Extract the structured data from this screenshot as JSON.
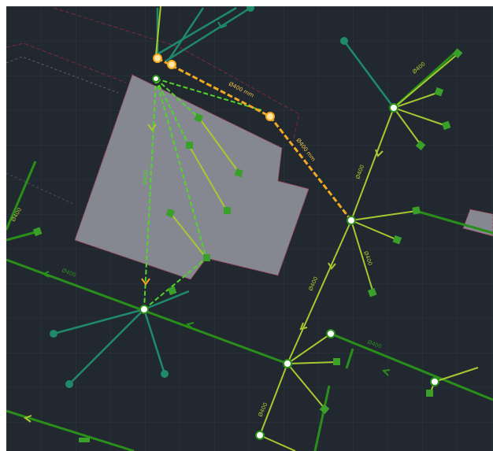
{
  "canvas": {
    "background": "#212830",
    "grid_color": "#2c3440",
    "frame_color": "#ffffff"
  },
  "colors": {
    "building_fill": "#858891",
    "building_edge": "#a33a4a",
    "pipe_dark_green": "#2a8e1a",
    "pipe_lime": "#a6c930",
    "pipe_teal": "#1f8a6a",
    "pipe_selected": "#f0a824",
    "pipe_highlight_green": "#52d42a",
    "node_fill": "#ffffff",
    "label_color": "#9ad040",
    "selected_label_color": "#f4c24a"
  },
  "labels": {
    "pipe_main_top": "Ø400 mm",
    "pipe_main_diag": "Ø400 mm",
    "pipe_left_main": "Ø400",
    "pipe_vertical_house": "Ø400",
    "pipe_left_edge": "Ø400",
    "pipe_right_branch": "Ø400",
    "pipe_center_diag": "Ø400",
    "pipe_right_low": "Ø400",
    "pipe_bottom_right": "Ø400",
    "pipe_bottom_diag": "Ø400",
    "pipe_upper_right": "Ø400"
  },
  "icons": [
    "flow-arrow-icon",
    "fitting-end-icon",
    "junction-node-icon",
    "selection-grip-icon"
  ]
}
